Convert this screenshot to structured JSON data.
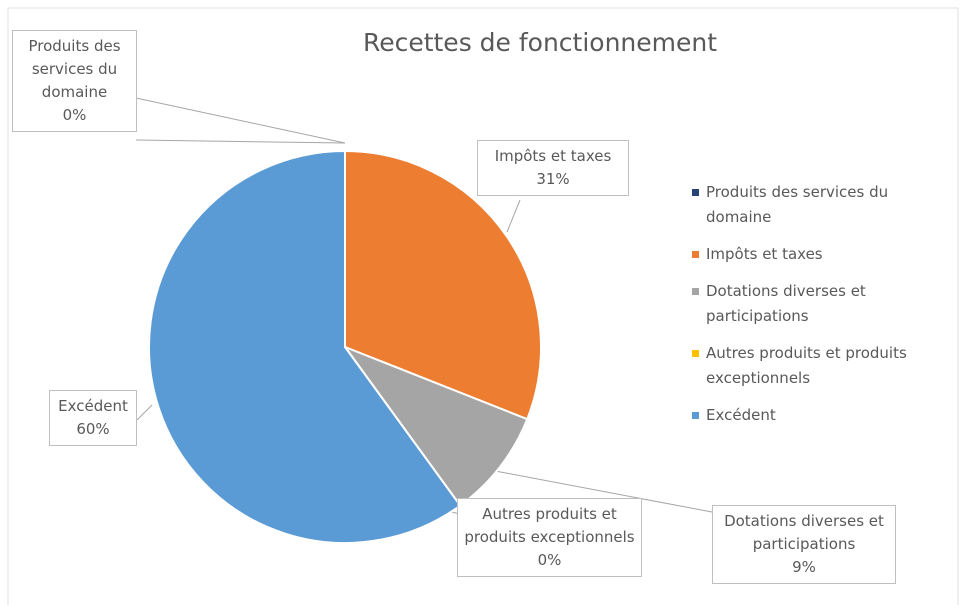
{
  "chart_data": {
    "type": "pie",
    "title": "Recettes de fonctionnement",
    "categories": [
      "Produits des services du domaine",
      "Impôts et taxes",
      "Dotations diverses et participations",
      "Autres produits et produits exceptionnels",
      "Excédent"
    ],
    "values": [
      0,
      31,
      9,
      0,
      60
    ],
    "value_labels": [
      "0%",
      "31%",
      "9%",
      "0%",
      "60%"
    ],
    "colors": [
      "#264478",
      "#ed7d31",
      "#a5a5a5",
      "#ffc000",
      "#5b9bd5"
    ],
    "legend": "right"
  }
}
